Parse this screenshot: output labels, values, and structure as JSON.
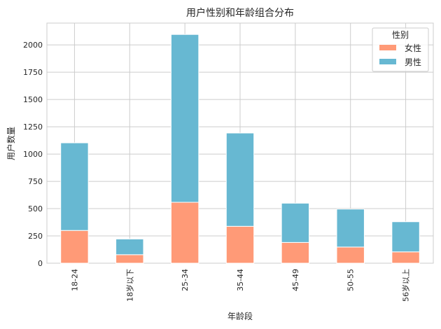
{
  "chart_data": {
    "type": "bar",
    "stacked": true,
    "title": "用户性别和年龄组合分布",
    "xlabel": "年龄段",
    "ylabel": "用户数量",
    "categories": [
      "18-24",
      "18岁以下",
      "25-34",
      "35-44",
      "45-49",
      "50-55",
      "56岁以上"
    ],
    "series": [
      {
        "name": "女性",
        "color": "#FF9A77",
        "values": [
          300,
          78,
          558,
          338,
          190,
          148,
          104
        ]
      },
      {
        "name": "男性",
        "color": "#67B8D2",
        "values": [
          803,
          144,
          1538,
          855,
          360,
          348,
          276
        ]
      }
    ],
    "ylim": [
      0,
      2200
    ],
    "yticks": [
      0,
      250,
      500,
      750,
      1000,
      1250,
      1500,
      1750,
      2000
    ],
    "grid": true,
    "legend": {
      "title": "性别",
      "placement": "top-right"
    }
  }
}
